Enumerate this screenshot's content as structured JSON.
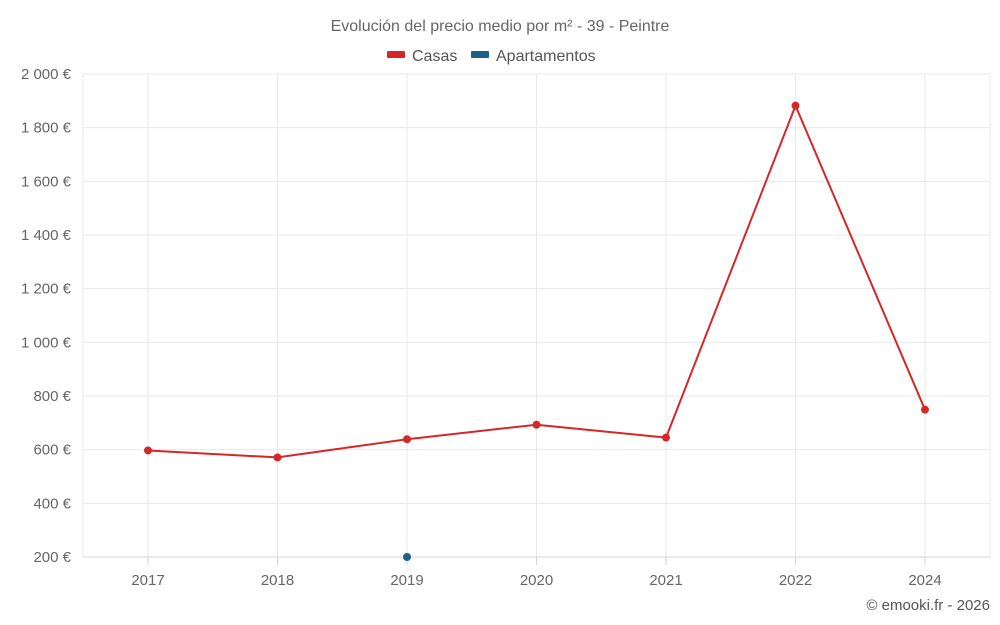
{
  "chart_data": {
    "type": "line",
    "title": "Evolución del precio medio por m² - 39 - Peintre",
    "categories": [
      "2017",
      "2018",
      "2019",
      "2020",
      "2021",
      "2022",
      "2024"
    ],
    "ylim": [
      200,
      2000
    ],
    "yticks": [
      200,
      400,
      600,
      800,
      1000,
      1200,
      1400,
      1600,
      1800,
      2000
    ],
    "ytick_labels": [
      "200 €",
      "400 €",
      "600 €",
      "800 €",
      "1 000 €",
      "1 200 €",
      "1 400 €",
      "1 600 €",
      "1 800 €",
      "2 000 €"
    ],
    "grid": true,
    "legend_position": "top",
    "series": [
      {
        "name": "Casas",
        "color": "#d62728",
        "values": [
          597,
          571,
          639,
          693,
          645,
          1882,
          749
        ]
      },
      {
        "name": "Apartamentos",
        "color": "#1f5f8b",
        "values": [
          null,
          null,
          200,
          null,
          null,
          null,
          null
        ]
      }
    ]
  },
  "credit": "© emooki.fr - 2026"
}
